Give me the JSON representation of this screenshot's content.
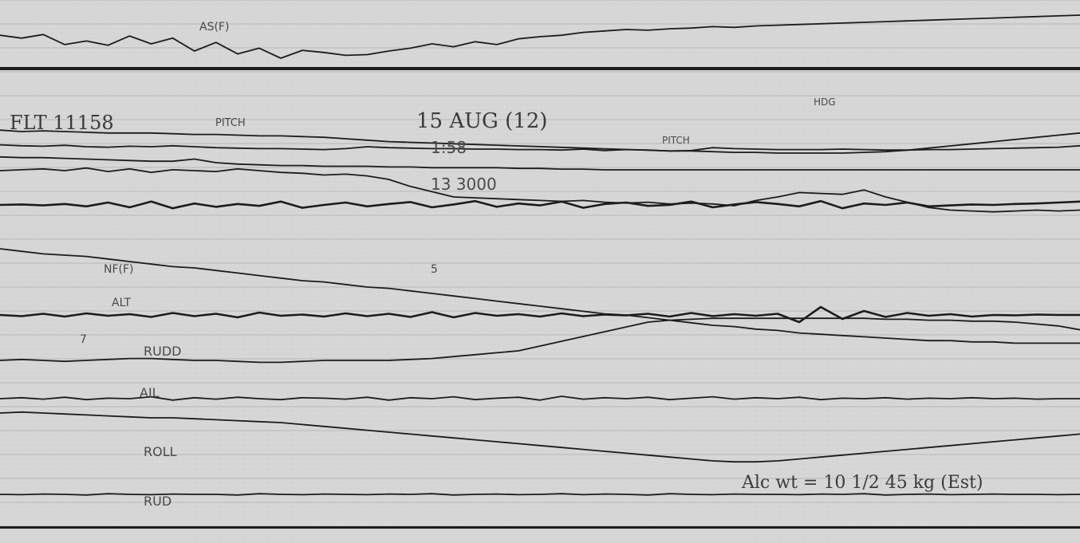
{
  "colors": {
    "paper": "#d7d7d7",
    "grid": "#bdbdbd",
    "trace": "#1c1c1c",
    "ink": "#4a4a4a"
  },
  "chart_data": {
    "type": "line",
    "title": "",
    "xlabel": "",
    "ylabel": "",
    "grid": true,
    "annotations": {
      "flight": "FLT 11158",
      "time_main": "15 AUG (12)",
      "time_sub": "1:58",
      "count": "13 3000",
      "note": "Alc wt = 10 1/2 45 kg (Est)",
      "tag_top": "AS(F)",
      "tag_pitch": "PITCH",
      "tag_pitch2": "PITCH",
      "tag_hdg": "HDG",
      "tag_nf": "NF(F)",
      "tag_alt": "ALT",
      "tag_ail": "AIL",
      "tag_rudd": "RUDD",
      "tag_roll": "ROLL",
      "tag_rud": "RUD",
      "tag_misc1": "7",
      "tag_misc2": "5"
    },
    "series": [
      {
        "values": [
          62,
          58,
          63,
          49,
          54,
          48,
          61,
          50,
          58,
          40,
          52,
          36,
          44,
          30,
          41,
          38,
          34,
          35,
          40,
          44,
          50,
          46,
          53,
          49,
          57,
          60,
          62,
          66,
          68,
          70,
          69,
          71,
          72,
          74,
          73,
          75,
          76,
          77,
          78,
          79,
          80,
          81,
          82,
          83,
          84,
          85,
          86,
          87,
          88,
          89,
          90
        ]
      },
      {
        "values": [
          52,
          50,
          51,
          50,
          49,
          48,
          48,
          48,
          47,
          46,
          46,
          45,
          44,
          44,
          43,
          42,
          40,
          38,
          36,
          35,
          34,
          33,
          32,
          31,
          30,
          29,
          28,
          27,
          26,
          25,
          24,
          23,
          23,
          22,
          21,
          21,
          20,
          20,
          20,
          20,
          21,
          22,
          24,
          27,
          30,
          33,
          36,
          39,
          42,
          45,
          48
        ]
      },
      {
        "values": [
          48,
          47,
          47,
          46,
          45,
          44,
          43,
          42,
          42,
          45,
          40,
          38,
          37,
          36,
          36,
          35,
          35,
          35,
          34,
          34,
          33,
          33,
          33,
          33,
          32,
          32,
          31,
          31,
          30,
          30,
          30,
          30,
          30,
          30,
          30,
          30,
          30,
          30,
          30,
          30,
          30,
          30,
          30,
          30,
          30,
          30,
          30,
          30,
          30,
          30,
          30
        ]
      },
      {
        "values": [
          60,
          61,
          62,
          60,
          63,
          59,
          62,
          58,
          61,
          60,
          59,
          62,
          60,
          58,
          57,
          55,
          56,
          54,
          50,
          42,
          36,
          30,
          29,
          28,
          27,
          26,
          25,
          26,
          24,
          23,
          24,
          22,
          23,
          22,
          20,
          26,
          30,
          35,
          34,
          33,
          38,
          30,
          24,
          18,
          15,
          14,
          13,
          14,
          15,
          14,
          15
        ]
      },
      {
        "values": [
          64,
          62,
          61,
          63,
          60,
          59,
          61,
          60,
          62,
          60,
          58,
          57,
          56,
          56,
          55,
          54,
          56,
          60,
          58,
          57,
          56,
          56,
          55,
          55,
          54,
          54,
          53,
          55,
          52,
          54,
          53,
          51,
          52,
          58,
          56,
          55,
          54,
          54,
          54,
          55,
          54,
          53,
          53,
          54,
          54,
          55,
          56,
          57,
          58,
          59,
          62
        ]
      },
      {
        "values": [
          55,
          56,
          54,
          57,
          52,
          60,
          50,
          62,
          48,
          58,
          51,
          57,
          53,
          62,
          49,
          55,
          60,
          52,
          57,
          61,
          50,
          56,
          63,
          51,
          58,
          54,
          62,
          49,
          57,
          60,
          53,
          55,
          62,
          50,
          56,
          61,
          57,
          52,
          63,
          48,
          58,
          55,
          60,
          52,
          54,
          56,
          55,
          57,
          58,
          60,
          62
        ]
      },
      {
        "values": [
          80,
          78,
          76,
          75,
          74,
          72,
          70,
          68,
          66,
          65,
          63,
          61,
          59,
          57,
          55,
          54,
          52,
          50,
          49,
          47,
          45,
          43,
          41,
          39,
          37,
          35,
          33,
          31,
          29,
          28,
          26,
          24,
          22,
          20,
          19,
          17,
          16,
          14,
          13,
          12,
          11,
          10,
          9,
          8,
          8,
          7,
          7,
          6,
          6,
          6,
          6
        ]
      },
      {
        "values": [
          50,
          47,
          53,
          46,
          54,
          48,
          52,
          45,
          55,
          47,
          53,
          44,
          56,
          48,
          51,
          46,
          54,
          47,
          53,
          45,
          57,
          44,
          55,
          48,
          52,
          46,
          54,
          47,
          51,
          49,
          53,
          46,
          55,
          47,
          52,
          48,
          53,
          32,
          70,
          40,
          60,
          45,
          55,
          48,
          52,
          46,
          50,
          49,
          51,
          50,
          50
        ]
      },
      {
        "values": [
          40,
          41,
          40,
          39,
          40,
          41,
          42,
          42,
          41,
          40,
          40,
          39,
          38,
          38,
          39,
          40,
          40,
          40,
          40,
          41,
          42,
          44,
          46,
          48,
          50,
          55,
          60,
          65,
          70,
          75,
          80,
          82,
          83,
          84,
          84,
          84,
          84,
          84,
          84,
          84,
          84,
          83,
          83,
          82,
          82,
          81,
          81,
          80,
          78,
          76,
          72
        ]
      },
      {
        "values": [
          50,
          52,
          49,
          53,
          48,
          51,
          50,
          54,
          47,
          52,
          49,
          53,
          50,
          48,
          52,
          51,
          49,
          53,
          47,
          52,
          50,
          54,
          48,
          51,
          53,
          47,
          55,
          49,
          52,
          50,
          53,
          48,
          51,
          54,
          49,
          52,
          50,
          53,
          48,
          51,
          50,
          52,
          49,
          51,
          50,
          52,
          50,
          51,
          49,
          50,
          50
        ]
      },
      {
        "values": [
          60,
          61,
          60,
          59,
          58,
          57,
          56,
          55,
          55,
          54,
          53,
          52,
          51,
          50,
          48,
          46,
          44,
          42,
          40,
          38,
          36,
          34,
          32,
          30,
          28,
          26,
          24,
          22,
          20,
          18,
          16,
          14,
          12,
          10,
          9,
          9,
          10,
          12,
          14,
          16,
          18,
          20,
          22,
          24,
          26,
          28,
          30,
          32,
          34,
          36,
          38
        ]
      },
      {
        "values": [
          50,
          49,
          51,
          50,
          48,
          52,
          50,
          49,
          51,
          50,
          50,
          48,
          52,
          50,
          49,
          51,
          50,
          49,
          51,
          50,
          52,
          48,
          50,
          51,
          49,
          50,
          52,
          49,
          51,
          50,
          48,
          52,
          50,
          49,
          51,
          50,
          50,
          49,
          51,
          50,
          52,
          48,
          50,
          51,
          49,
          50,
          51,
          50,
          50,
          49,
          50
        ]
      }
    ]
  }
}
